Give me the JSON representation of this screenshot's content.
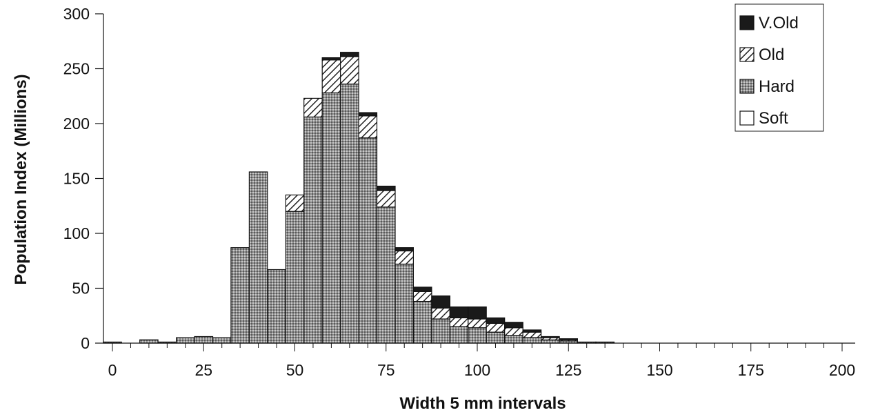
{
  "chart_data": {
    "type": "bar",
    "stacked": true,
    "title": "",
    "xlabel": "Width  5 mm intervals",
    "ylabel": "Population Index (Millions)",
    "xlim": [
      -2.5,
      202.5
    ],
    "ylim": [
      0,
      300
    ],
    "xticks": [
      0,
      25,
      50,
      75,
      100,
      125,
      150,
      175,
      200
    ],
    "xtick_labels": [
      "0",
      "25",
      "50",
      "75",
      "100",
      "125",
      "150",
      "175",
      "200"
    ],
    "yticks": [
      0,
      50,
      100,
      150,
      200,
      250,
      300
    ],
    "ytick_labels": [
      "0",
      "50",
      "100",
      "150",
      "200",
      "250",
      "300"
    ],
    "bin_width": 5,
    "grid": false,
    "legend_position": "top-right",
    "x": [
      0,
      5,
      10,
      15,
      20,
      25,
      30,
      35,
      40,
      45,
      50,
      55,
      60,
      65,
      70,
      75,
      80,
      85,
      90,
      95,
      100,
      105,
      110,
      115,
      120,
      125,
      130,
      135
    ],
    "series": [
      {
        "name": "Soft",
        "pattern": "white",
        "values": [
          0,
          0,
          0,
          0,
          0,
          0,
          0,
          0,
          0,
          0,
          0,
          0,
          0,
          0,
          0,
          0,
          0,
          0,
          0,
          0,
          0,
          0,
          0,
          0,
          0,
          0,
          0,
          0
        ]
      },
      {
        "name": "Hard",
        "pattern": "dotted",
        "values": [
          1,
          0,
          3,
          1,
          5,
          6,
          5,
          87,
          156,
          67,
          120,
          206,
          228,
          236,
          187,
          124,
          72,
          38,
          22,
          15,
          14,
          10,
          7,
          5,
          3,
          2,
          1,
          1
        ]
      },
      {
        "name": "Old",
        "pattern": "hatched",
        "values": [
          0,
          0,
          0,
          0,
          0,
          0,
          0,
          0,
          0,
          0,
          15,
          17,
          30,
          25,
          20,
          15,
          12,
          9,
          10,
          8,
          8,
          8,
          7,
          5,
          2,
          1,
          0,
          0
        ]
      },
      {
        "name": "V.Old",
        "pattern": "black",
        "values": [
          0,
          0,
          0,
          0,
          0,
          0,
          0,
          0,
          0,
          0,
          0,
          0,
          2,
          4,
          3,
          4,
          3,
          4,
          11,
          10,
          11,
          5,
          5,
          2,
          1,
          1,
          0,
          0
        ]
      }
    ],
    "legend_order": [
      "V.Old",
      "Old",
      "Hard",
      "Soft"
    ]
  }
}
